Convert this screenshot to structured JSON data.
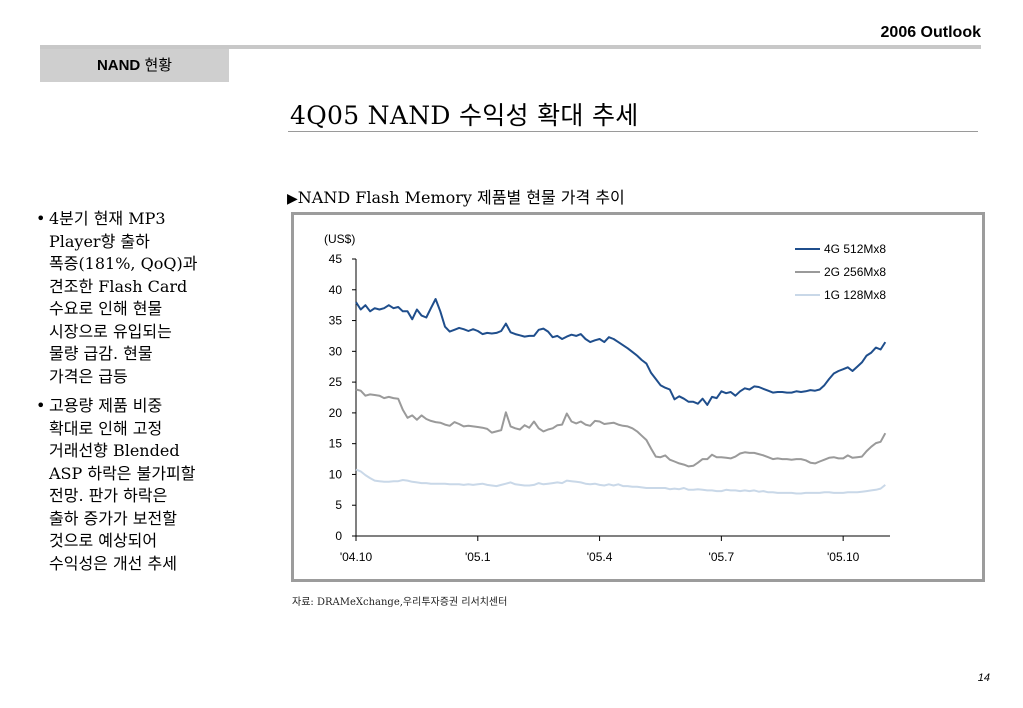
{
  "header": {
    "title": "2006 Outlook"
  },
  "section_tab": {
    "bold": "NAND",
    "rest": " 현황"
  },
  "slide_title": "4Q05 NAND 수익성 확대 추세",
  "bullets": [
    {
      "lines": [
        "4분기 현재 MP3",
        "Player향 출하",
        "폭증(181%, QoQ)과",
        "견조한 Flash Card",
        "수요로 인해 현물",
        "시장으로 유입되는",
        "물량 급감. 현물",
        "가격은 급등"
      ]
    },
    {
      "lines": [
        "고용량 제품 비중",
        "확대로 인해 고정",
        "거래선향 Blended",
        "ASP 하락은 불가피할",
        "전망. 판가 하락은",
        "출하 증가가 보전할",
        "것으로 예상되어",
        "수익성은 개선 추세"
      ]
    }
  ],
  "chart_heading": {
    "marker": "▶",
    "text": "NAND Flash Memory 제품별 현물 가격 추이"
  },
  "chart_data": {
    "type": "line",
    "unit_label": "(US$)",
    "ylim": [
      0,
      45
    ],
    "yticks": [
      "0",
      "5",
      "10",
      "15",
      "20",
      "25",
      "30",
      "35",
      "40",
      "45"
    ],
    "xticks": [
      "'04.10",
      "'05.1",
      "'05.4",
      "'05.7",
      "'05.10"
    ],
    "xtick_positions": [
      0,
      13,
      26,
      39,
      52
    ],
    "xlim": [
      0,
      57
    ],
    "grid": false,
    "legend_position": "top-right",
    "series": [
      {
        "name": "4G 512Mx8",
        "color": "#1f4e8c",
        "x": [
          0,
          0.5,
          1,
          1.5,
          2,
          2.5,
          3,
          3.5,
          4,
          4.5,
          5,
          5.5,
          6,
          6.5,
          7,
          7.5,
          8,
          8.5,
          9,
          9.5,
          10,
          10.5,
          11,
          11.5,
          12,
          12.5,
          13,
          13.5,
          14,
          14.5,
          15,
          15.5,
          16,
          16.5,
          17,
          17.5,
          18,
          18.5,
          19,
          19.5,
          20,
          20.5,
          21,
          21.5,
          22,
          22.5,
          23,
          23.5,
          24,
          24.5,
          25,
          25.5,
          26,
          26.5,
          27,
          27.5,
          28,
          28.5,
          29,
          29.5,
          30,
          30.5,
          31,
          31.5,
          32,
          32.5,
          33,
          33.5,
          34,
          34.5,
          35,
          35.5,
          36,
          36.5,
          37,
          37.5,
          38,
          38.5,
          39,
          39.5,
          40,
          40.5,
          41,
          41.5,
          42,
          42.5,
          43,
          43.5,
          44,
          44.5,
          45,
          45.5,
          46,
          46.5,
          47,
          47.5,
          48,
          48.5,
          49,
          49.5,
          50,
          50.5,
          51,
          51.5,
          52,
          52.5,
          53,
          53.5,
          54,
          54.5,
          55,
          55.5,
          56,
          56.5
        ],
        "values": [
          38,
          36.8,
          37.5,
          36.5,
          37,
          36.8,
          37,
          37.5,
          37,
          37.2,
          36.5,
          36.5,
          35.2,
          36.8,
          35.8,
          35.5,
          37,
          38.5,
          36.5,
          34,
          33.2,
          33.5,
          33.8,
          33.6,
          33.3,
          33.6,
          33.3,
          32.8,
          33,
          32.9,
          33,
          33.3,
          34.5,
          33.1,
          32.8,
          32.6,
          32.4,
          32.5,
          32.5,
          33.5,
          33.7,
          33.2,
          32.3,
          32.5,
          32,
          32.4,
          32.7,
          32.5,
          32.8,
          32,
          31.5,
          31.8,
          32,
          31.5,
          32.3,
          32,
          31.5,
          31,
          30.5,
          29.9,
          29.3,
          28.6,
          28,
          26.5,
          25.5,
          24.5,
          24.1,
          23.8,
          22.2,
          22.7,
          22.3,
          21.8,
          21.8,
          21.5,
          22.3,
          21.3,
          22.6,
          22.4,
          23.5,
          23.2,
          23.4,
          22.8,
          23.5,
          24,
          23.8,
          24.3,
          24.2,
          23.9,
          23.6,
          23.3,
          23.4,
          23.4,
          23.3,
          23.3,
          23.5,
          23.4,
          23.5,
          23.7,
          23.6,
          23.8,
          24.5,
          25.5,
          26.4,
          26.8,
          27.1,
          27.4,
          26.8,
          27.5,
          28.2,
          29.3,
          29.8,
          30.6,
          30.3,
          31.5
        ]
      },
      {
        "name": "2G 256Mx8",
        "color": "#9a9a9a",
        "x": [
          0,
          0.5,
          1,
          1.5,
          2,
          2.5,
          3,
          3.5,
          4,
          4.5,
          5,
          5.5,
          6,
          6.5,
          7,
          7.5,
          8,
          8.5,
          9,
          9.5,
          10,
          10.5,
          11,
          11.5,
          12,
          12.5,
          13,
          13.5,
          14,
          14.5,
          15,
          15.5,
          16,
          16.5,
          17,
          17.5,
          18,
          18.5,
          19,
          19.5,
          20,
          20.5,
          21,
          21.5,
          22,
          22.5,
          23,
          23.5,
          24,
          24.5,
          25,
          25.5,
          26,
          26.5,
          27,
          27.5,
          28,
          28.5,
          29,
          29.5,
          30,
          30.5,
          31,
          31.5,
          32,
          32.5,
          33,
          33.5,
          34,
          34.5,
          35,
          35.5,
          36,
          36.5,
          37,
          37.5,
          38,
          38.5,
          39,
          39.5,
          40,
          40.5,
          41,
          41.5,
          42,
          42.5,
          43,
          43.5,
          44,
          44.5,
          45,
          45.5,
          46,
          46.5,
          47,
          47.5,
          48,
          48.5,
          49,
          49.5,
          50,
          50.5,
          51,
          51.5,
          52,
          52.5,
          53,
          53.5,
          54,
          54.5,
          55,
          55.5,
          56,
          56.5
        ],
        "values": [
          23.8,
          23.6,
          22.8,
          23,
          22.9,
          22.8,
          22.4,
          22.6,
          22.4,
          22.3,
          20.5,
          19.2,
          19.6,
          18.9,
          19.6,
          19,
          18.7,
          18.5,
          18.4,
          18.1,
          17.9,
          18.5,
          18.2,
          17.8,
          17.9,
          17.8,
          17.7,
          17.6,
          17.4,
          16.8,
          17,
          17.2,
          20.1,
          17.8,
          17.5,
          17.3,
          18,
          17.6,
          18.6,
          17.5,
          17,
          17.3,
          17.5,
          18,
          18.1,
          19.9,
          18.6,
          18.3,
          18.6,
          18.1,
          17.9,
          18.7,
          18.6,
          18.2,
          18.3,
          18.4,
          18.1,
          17.9,
          17.8,
          17.5,
          17,
          16.3,
          15.6,
          14.2,
          12.9,
          12.8,
          13.1,
          12.4,
          12.1,
          11.8,
          11.6,
          11.3,
          11.4,
          11.9,
          12.5,
          12.5,
          13.2,
          12.8,
          12.8,
          12.7,
          12.6,
          12.9,
          13.4,
          13.6,
          13.5,
          13.5,
          13.3,
          13.1,
          12.8,
          12.5,
          12.6,
          12.5,
          12.5,
          12.4,
          12.5,
          12.5,
          12.3,
          11.9,
          11.8,
          12.1,
          12.4,
          12.7,
          12.8,
          12.6,
          12.6,
          13.1,
          12.7,
          12.8,
          12.9,
          13.8,
          14.5,
          15.1,
          15.3,
          16.7
        ]
      },
      {
        "name": "1G 128Mx8",
        "color": "#c9d8e8",
        "x": [
          0,
          0.5,
          1,
          1.5,
          2,
          2.5,
          3,
          3.5,
          4,
          4.5,
          5,
          5.5,
          6,
          6.5,
          7,
          7.5,
          8,
          8.5,
          9,
          9.5,
          10,
          10.5,
          11,
          11.5,
          12,
          12.5,
          13,
          13.5,
          14,
          14.5,
          15,
          15.5,
          16,
          16.5,
          17,
          17.5,
          18,
          18.5,
          19,
          19.5,
          20,
          20.5,
          21,
          21.5,
          22,
          22.5,
          23,
          23.5,
          24,
          24.5,
          25,
          25.5,
          26,
          26.5,
          27,
          27.5,
          28,
          28.5,
          29,
          29.5,
          30,
          30.5,
          31,
          31.5,
          32,
          32.5,
          33,
          33.5,
          34,
          34.5,
          35,
          35.5,
          36,
          36.5,
          37,
          37.5,
          38,
          38.5,
          39,
          39.5,
          40,
          40.5,
          41,
          41.5,
          42,
          42.5,
          43,
          43.5,
          44,
          44.5,
          45,
          45.5,
          46,
          46.5,
          47,
          47.5,
          48,
          48.5,
          49,
          49.5,
          50,
          50.5,
          51,
          51.5,
          52,
          52.5,
          53,
          53.5,
          54,
          54.5,
          55,
          55.5,
          56,
          56.5
        ],
        "values": [
          10.8,
          10.5,
          9.9,
          9.4,
          9,
          8.9,
          8.8,
          8.8,
          8.9,
          8.9,
          9.1,
          9,
          8.8,
          8.7,
          8.6,
          8.6,
          8.5,
          8.5,
          8.5,
          8.5,
          8.4,
          8.4,
          8.4,
          8.3,
          8.4,
          8.3,
          8.4,
          8.5,
          8.3,
          8.2,
          8.1,
          8.3,
          8.5,
          8.7,
          8.4,
          8.3,
          8.2,
          8.2,
          8.3,
          8.6,
          8.4,
          8.5,
          8.6,
          8.7,
          8.6,
          9,
          8.9,
          8.8,
          8.7,
          8.5,
          8.4,
          8.5,
          8.3,
          8.2,
          8.4,
          8.2,
          8.4,
          8.1,
          8.1,
          8,
          8,
          7.9,
          7.8,
          7.8,
          7.8,
          7.8,
          7.8,
          7.6,
          7.7,
          7.6,
          7.8,
          7.5,
          7.5,
          7.6,
          7.5,
          7.4,
          7.4,
          7.3,
          7.3,
          7.5,
          7.4,
          7.4,
          7.3,
          7.4,
          7.3,
          7.4,
          7.2,
          7.3,
          7.1,
          7.1,
          7,
          7,
          7,
          7,
          6.9,
          6.9,
          7,
          7,
          7,
          7,
          7.1,
          7.1,
          7,
          7,
          7,
          7.1,
          7.1,
          7.1,
          7.2,
          7.3,
          7.4,
          7.5,
          7.7,
          8.3
        ]
      }
    ]
  },
  "source_note": "자료: DRAMeXchange,우리투자증권 리서치센터",
  "page_number": "14"
}
